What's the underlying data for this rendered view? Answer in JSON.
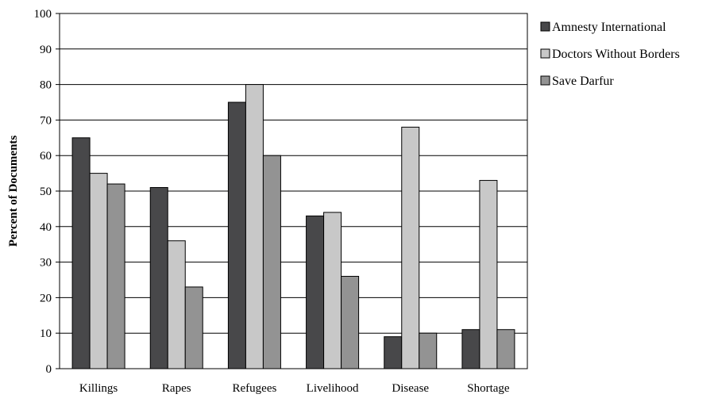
{
  "chart_data": {
    "type": "bar",
    "title": "",
    "xlabel": "",
    "ylabel": "Percent of Documents",
    "ylim": [
      0,
      100
    ],
    "yticks": [
      0,
      10,
      20,
      30,
      40,
      50,
      60,
      70,
      80,
      90,
      100
    ],
    "grid": true,
    "legend_position": "right",
    "categories": [
      "Killings",
      "Rapes",
      "Refugees",
      "Livelihood",
      "Disease",
      "Shortage"
    ],
    "series": [
      {
        "name": "Amnesty International",
        "color": "#48484a",
        "values": [
          65,
          51,
          75,
          43,
          9,
          11
        ]
      },
      {
        "name": "Doctors Without Borders",
        "color": "#c8c8c8",
        "values": [
          55,
          36,
          80,
          44,
          68,
          53
        ]
      },
      {
        "name": "Save Darfur",
        "color": "#939393",
        "values": [
          52,
          23,
          60,
          26,
          10,
          11
        ]
      }
    ]
  }
}
